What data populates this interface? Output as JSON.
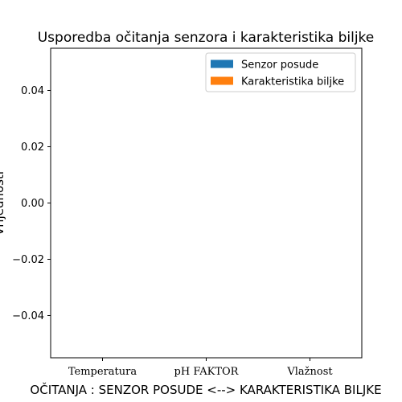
{
  "chart_data": {
    "type": "bar",
    "title": "Usporedba očitanja senzora i karakteristika biljke",
    "xlabel": "OČITANJA : SENZOR POSUDE <--> KARAKTERISTIKA BILJKE",
    "ylabel": "Vrijednosti",
    "categories": [
      "Temperatura",
      "pH FAKTOR",
      "Vlažnost"
    ],
    "series": [
      {
        "name": "Senzor posude",
        "values": [
          0,
          0,
          0
        ],
        "color": "#1f77b4"
      },
      {
        "name": "Karakteristika biljke",
        "values": [
          0,
          0,
          0
        ],
        "color": "#ff7f0e"
      }
    ],
    "ylim": [
      -0.055,
      0.055
    ],
    "yticks": [
      -0.04,
      -0.02,
      0.0,
      0.02,
      0.04
    ],
    "ytick_labels": [
      "−0.04",
      "−0.02",
      "0.00",
      "0.02",
      "0.04"
    ],
    "legend_position": "top-right",
    "grid": false
  }
}
